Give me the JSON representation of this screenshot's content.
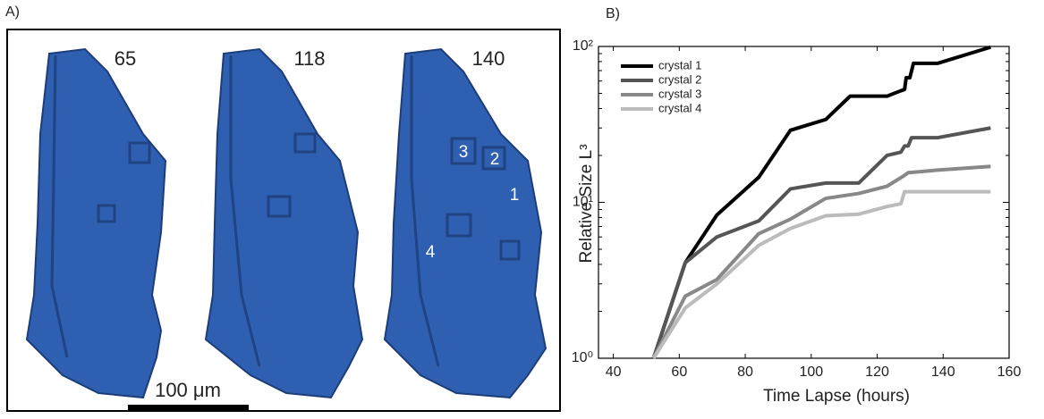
{
  "panel_a": {
    "label": "A)",
    "frames": [
      "65",
      "118",
      "140"
    ],
    "crystal_labels": [
      "3",
      "2",
      "1",
      "4"
    ],
    "scale_label": "100 μm"
  },
  "chart_data": {
    "type": "line",
    "panel_label": "B)",
    "xlabel": "Time Lapse (hours)",
    "ylabel": "Relative Size L³",
    "xlim": [
      35.5,
      160
    ],
    "xticks": [
      40,
      60,
      80,
      100,
      120,
      140,
      160
    ],
    "ylim": [
      1,
      100
    ],
    "yscale": "log",
    "yticks": [
      {
        "value": 1,
        "label": "10⁰"
      },
      {
        "value": 10,
        "label": "10¹"
      },
      {
        "value": 100,
        "label": "10²"
      }
    ],
    "legend": "upper left",
    "series": [
      {
        "name": "crystal 1",
        "color": "#000000",
        "x": [
          52.2,
          61.8,
          71.4,
          84.1,
          93.7,
          104.4,
          111.8,
          123,
          127.2,
          128.3,
          128.8,
          129.9,
          131,
          138.4,
          154.4
        ],
        "values": [
          1,
          4.1,
          8.3,
          14.5,
          29,
          34,
          48,
          48,
          52,
          53,
          63,
          63,
          78,
          78,
          99
        ]
      },
      {
        "name": "crystal 2",
        "color": "#555555",
        "x": [
          52.2,
          61.8,
          71.4,
          84.1,
          93.7,
          104.4,
          114.4,
          123,
          127.2,
          128.3,
          129.4,
          130.4,
          138.4,
          154.4
        ],
        "values": [
          1,
          4.1,
          6.0,
          7.6,
          12.2,
          13.3,
          13.3,
          20,
          21,
          23,
          23,
          26,
          26,
          30
        ]
      },
      {
        "name": "crystal 3",
        "color": "#888888",
        "x": [
          52.2,
          61.8,
          71.4,
          84.1,
          93.7,
          104.4,
          114.4,
          123,
          128.3,
          129.4,
          138.4,
          154.4
        ],
        "values": [
          1,
          2.5,
          3.2,
          6.3,
          7.8,
          10.6,
          11.4,
          12.7,
          14.9,
          15.5,
          16.1,
          17.0
        ]
      },
      {
        "name": "crystal 4",
        "color": "#bbbbbb",
        "x": [
          52.2,
          61.8,
          71.4,
          84.1,
          93.7,
          104.4,
          114.4,
          123,
          127.2,
          128.3,
          138.4,
          154.4
        ],
        "values": [
          1,
          2.1,
          3.0,
          5.3,
          6.8,
          8.2,
          8.4,
          9.4,
          9.8,
          11.7,
          11.7,
          11.7
        ]
      }
    ]
  }
}
